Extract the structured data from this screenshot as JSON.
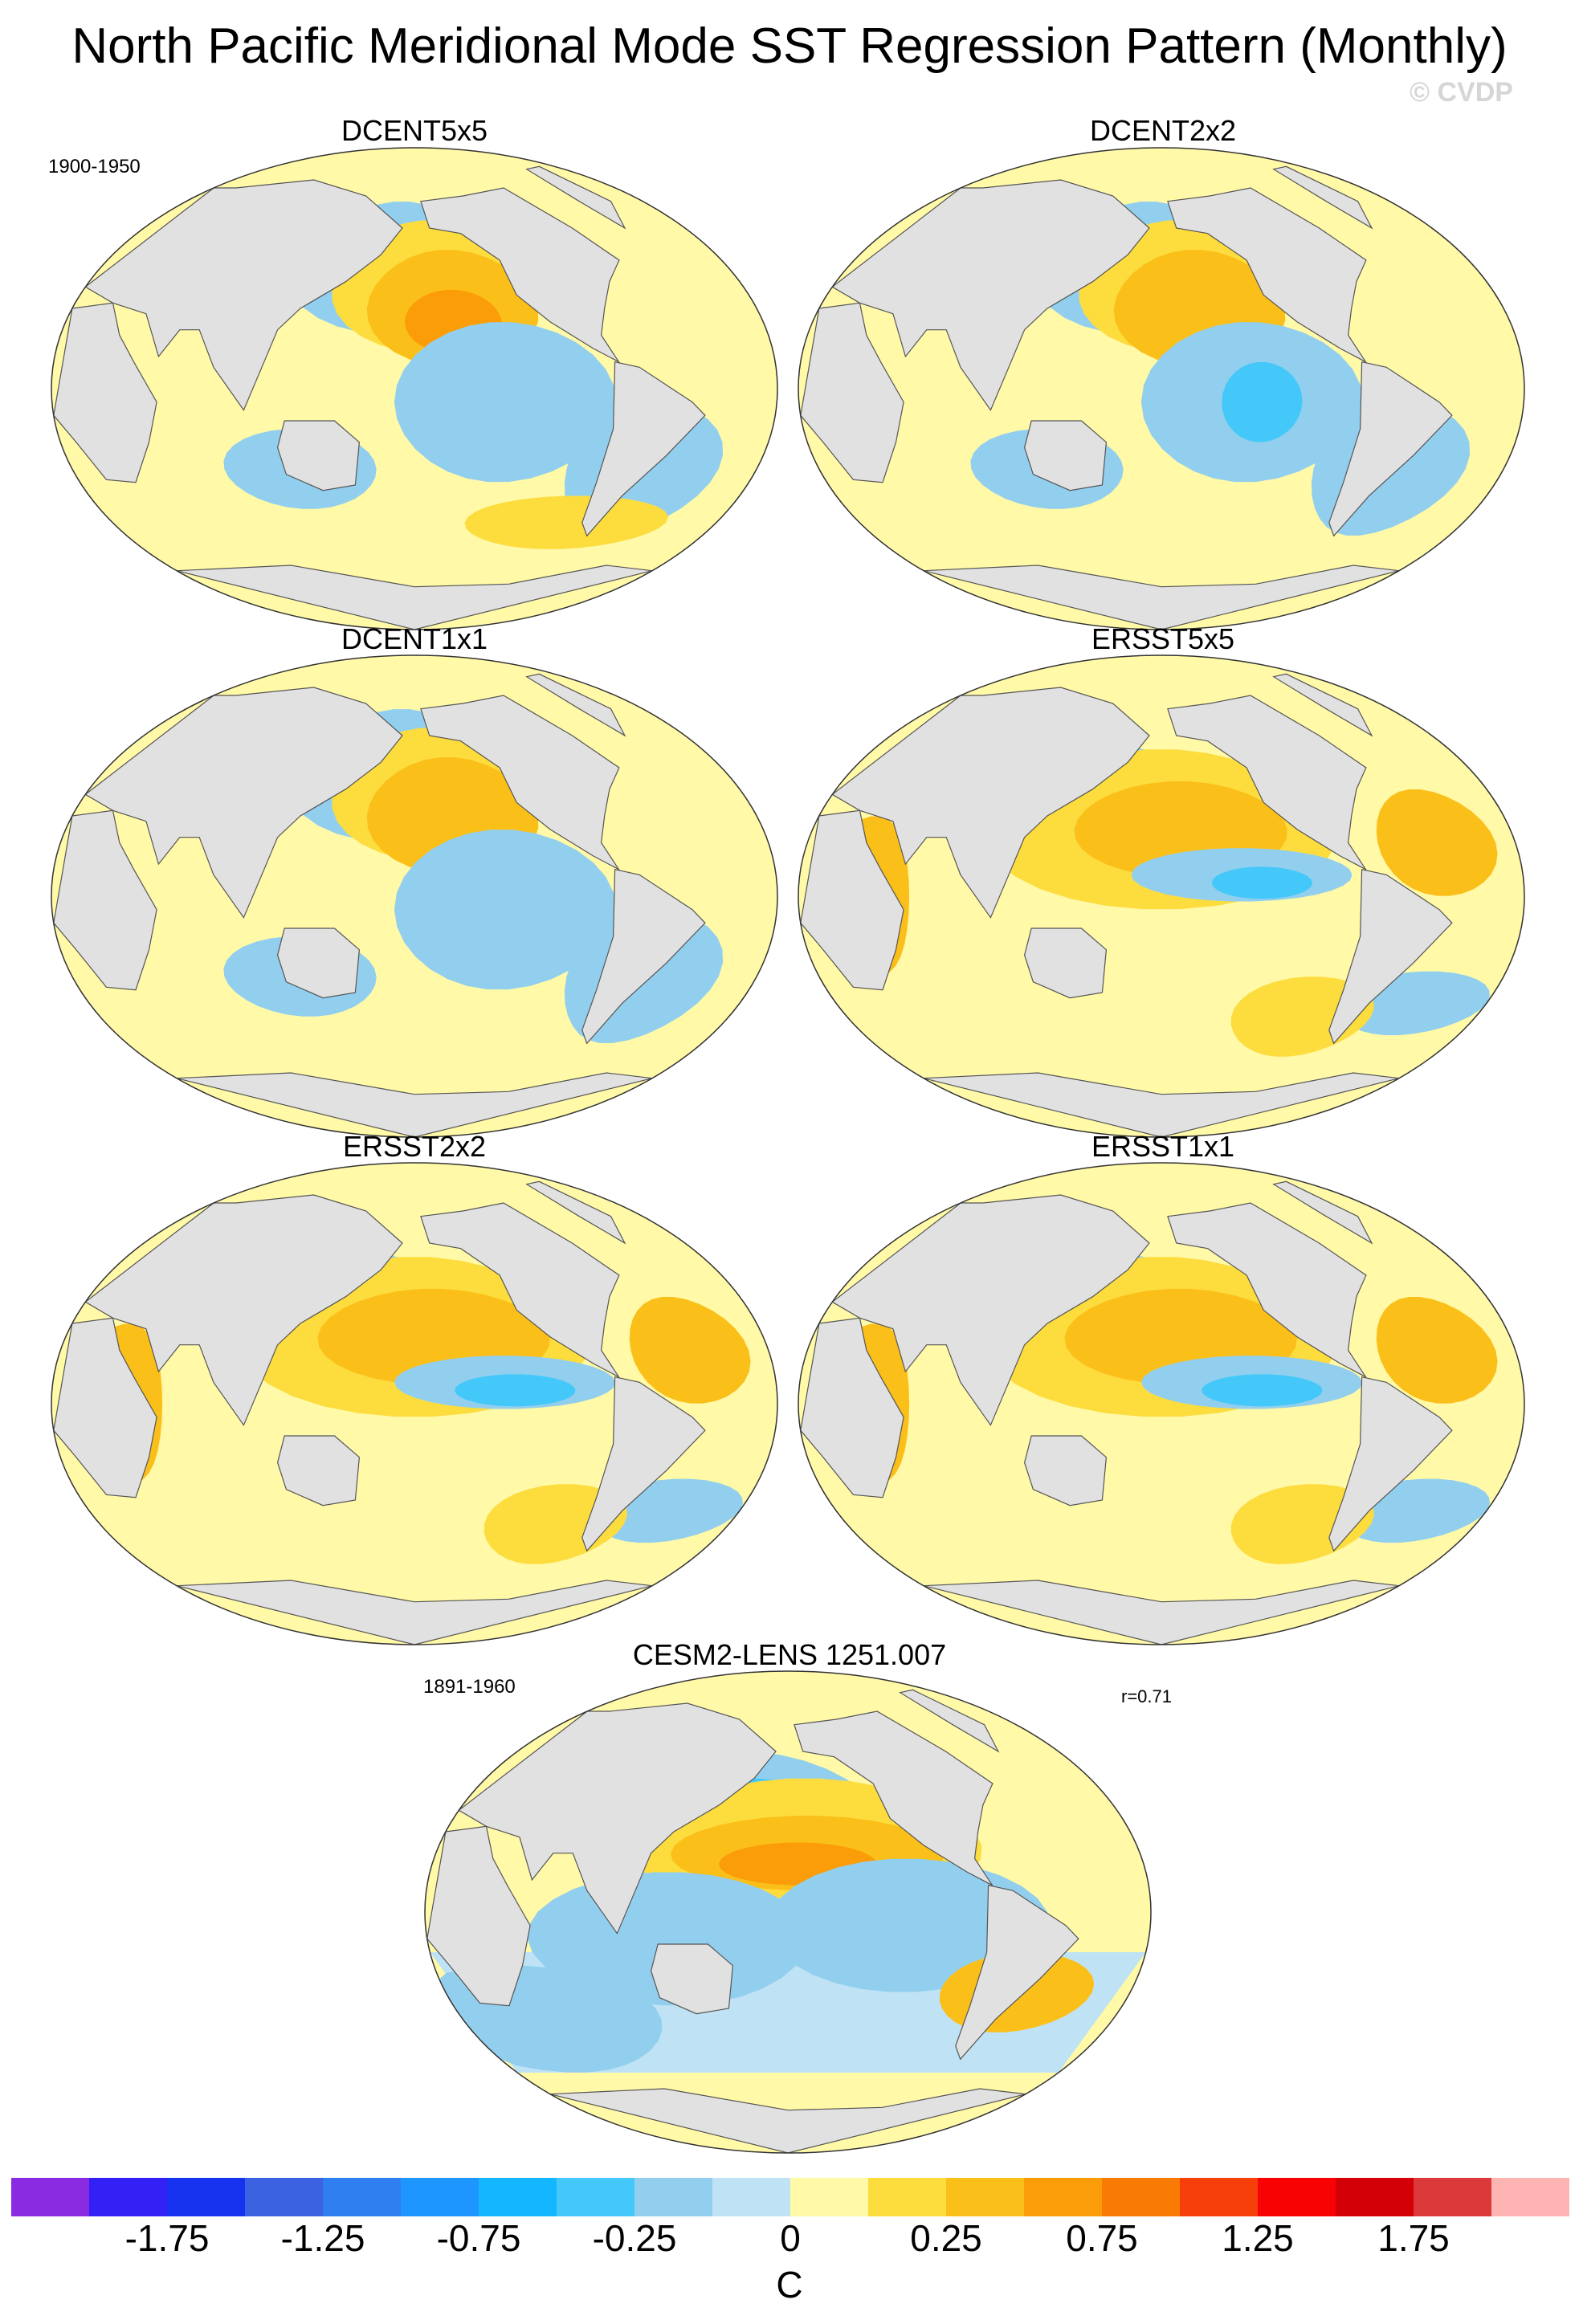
{
  "title": "North Pacific Meridional Mode SST Regression Pattern (Monthly)",
  "watermark": "© CVDP",
  "panels": [
    {
      "title": "DCENT5x5",
      "period": "1900-1950"
    },
    {
      "title": "DCENT2x2"
    },
    {
      "title": "DCENT1x1"
    },
    {
      "title": "ERSST5x5"
    },
    {
      "title": "ERSST2x2"
    },
    {
      "title": "ERSST1x1"
    },
    {
      "title": "CESM2-LENS 1251.007",
      "period": "1891-1960",
      "stat": "r=0.71"
    }
  ],
  "colorbar": {
    "unit": "C",
    "tick_labels": [
      "-1.75",
      "-1.25",
      "-0.75",
      "-0.25",
      "0",
      "0.25",
      "0.75",
      "1.25",
      "1.75"
    ],
    "colors": [
      "#8a2be2",
      "#3320f5",
      "#1833f0",
      "#3b62e0",
      "#2f7ff0",
      "#1e96ff",
      "#13b6ff",
      "#44c8fa",
      "#92cfee",
      "#bfe3f5",
      "#fff9a8",
      "#fddc3e",
      "#fbbf1a",
      "#fb9d08",
      "#fa7a06",
      "#f73f0a",
      "#f80203",
      "#d40007",
      "#dc3a3a",
      "#ffb4b4"
    ]
  },
  "colors": {
    "land": "#e1e1e1",
    "coast": "#555555",
    "neutral_pos": "#fff9a8",
    "neutral_neg": "#bfe3f5"
  }
}
